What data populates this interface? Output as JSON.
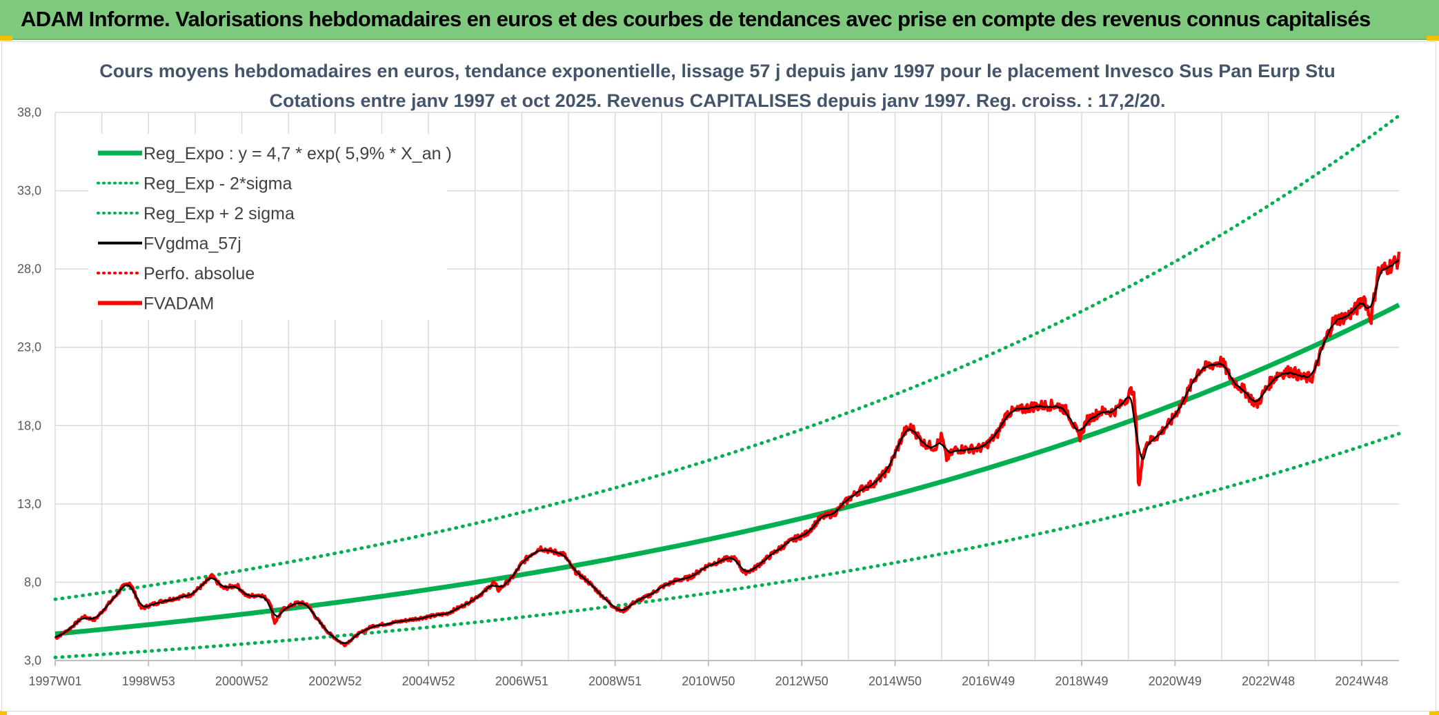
{
  "banner": {
    "title": "ADAM Informe. Valorisations hebdomadaires en euros et des courbes de tendances avec prise en compte des revenus connus capitalisés"
  },
  "colors": {
    "banner_bg": "#7fc97f",
    "trend": "#00b050",
    "price": "#ff0000",
    "smoothed": "#000000",
    "grid": "#d9d9d9"
  },
  "chart_data": {
    "type": "line",
    "title": "Cours moyens hebdomadaires en euros, tendance exponentielle, lissage 57 j depuis janv 1997 pour le placement Invesco Sus Pan Eurp Stu",
    "subtitle": "Cotations entre janv 1997 et oct 2025. Revenus CAPITALISES depuis janv 1997. Reg. croiss. : 17,2/20.",
    "xlabel": "",
    "ylabel": "",
    "x_range": [
      1997.0,
      2025.8
    ],
    "ylim": [
      3.0,
      38.0
    ],
    "y_ticks": [
      "3,0",
      "8,0",
      "13,0",
      "18,0",
      "23,0",
      "28,0",
      "33,0",
      "38,0"
    ],
    "x_ticks": [
      {
        "label": "1997W01",
        "x": 1997.0
      },
      {
        "label": "1998W53",
        "x": 1999.0
      },
      {
        "label": "2000W52",
        "x": 2001.0
      },
      {
        "label": "2002W52",
        "x": 2003.0
      },
      {
        "label": "2004W52",
        "x": 2005.0
      },
      {
        "label": "2006W51",
        "x": 2007.0
      },
      {
        "label": "2008W51",
        "x": 2009.0
      },
      {
        "label": "2010W50",
        "x": 2011.0
      },
      {
        "label": "2012W50",
        "x": 2013.0
      },
      {
        "label": "2014W50",
        "x": 2015.0
      },
      {
        "label": "2016W49",
        "x": 2017.0
      },
      {
        "label": "2018W49",
        "x": 2019.0
      },
      {
        "label": "2020W49",
        "x": 2021.0
      },
      {
        "label": "2022W48",
        "x": 2023.0
      },
      {
        "label": "2024W48",
        "x": 2025.0
      }
    ],
    "grid": true,
    "legend_position": "top-left",
    "trend": {
      "a": 4.7,
      "rate_percent": 5.9,
      "sigma_factor": 1.47
    },
    "series": [
      {
        "name": "Reg_Expo : y = 4,7 * exp( 5,9% *  X_an )",
        "kind": "trend",
        "color": "#00b050",
        "style": "solid"
      },
      {
        "name": "Reg_Exp - 2*sigma",
        "kind": "trend_low",
        "color": "#00b050",
        "style": "dotted"
      },
      {
        "name": "Reg_Exp + 2 sigma",
        "kind": "trend_high",
        "color": "#00b050",
        "style": "dotted"
      },
      {
        "name": "FVgdma_57j",
        "kind": "smoothed",
        "color": "#000000",
        "style": "solid"
      },
      {
        "name": "Perfo. absolue",
        "kind": "perf",
        "color": "#ff0000",
        "style": "dotted"
      },
      {
        "name": "FVADAM",
        "kind": "price",
        "color": "#ff0000",
        "style": "solid"
      }
    ],
    "price_points": [
      [
        1997.0,
        4.4
      ],
      [
        1997.3,
        5.0
      ],
      [
        1997.6,
        5.8
      ],
      [
        1997.85,
        5.6
      ],
      [
        1998.2,
        6.8
      ],
      [
        1998.45,
        7.7
      ],
      [
        1998.6,
        8.0
      ],
      [
        1998.75,
        7.0
      ],
      [
        1998.85,
        6.3
      ],
      [
        1999.0,
        6.5
      ],
      [
        1999.3,
        6.8
      ],
      [
        1999.6,
        7.0
      ],
      [
        1999.9,
        7.2
      ],
      [
        2000.2,
        7.9
      ],
      [
        2000.35,
        8.4
      ],
      [
        2000.6,
        7.6
      ],
      [
        2000.9,
        7.8
      ],
      [
        2001.1,
        7.1
      ],
      [
        2001.4,
        7.2
      ],
      [
        2001.6,
        6.8
      ],
      [
        2001.7,
        5.4
      ],
      [
        2001.9,
        6.3
      ],
      [
        2002.2,
        6.7
      ],
      [
        2002.4,
        6.6
      ],
      [
        2002.6,
        5.7
      ],
      [
        2002.85,
        4.8
      ],
      [
        2003.05,
        4.3
      ],
      [
        2003.2,
        4.0
      ],
      [
        2003.5,
        4.7
      ],
      [
        2003.8,
        5.2
      ],
      [
        2004.2,
        5.4
      ],
      [
        2004.6,
        5.6
      ],
      [
        2005.0,
        5.8
      ],
      [
        2005.4,
        6.0
      ],
      [
        2005.8,
        6.6
      ],
      [
        2006.2,
        7.4
      ],
      [
        2006.4,
        8.0
      ],
      [
        2006.5,
        7.5
      ],
      [
        2006.8,
        8.3
      ],
      [
        2007.0,
        9.2
      ],
      [
        2007.2,
        9.8
      ],
      [
        2007.4,
        10.2
      ],
      [
        2007.6,
        10.0
      ],
      [
        2007.9,
        9.8
      ],
      [
        2008.1,
        8.8
      ],
      [
        2008.4,
        8.1
      ],
      [
        2008.7,
        7.2
      ],
      [
        2008.95,
        6.5
      ],
      [
        2009.15,
        6.1
      ],
      [
        2009.4,
        6.7
      ],
      [
        2009.7,
        7.1
      ],
      [
        2010.0,
        7.7
      ],
      [
        2010.3,
        8.1
      ],
      [
        2010.6,
        8.3
      ],
      [
        2011.0,
        9.1
      ],
      [
        2011.4,
        9.5
      ],
      [
        2011.6,
        9.5
      ],
      [
        2011.75,
        8.6
      ],
      [
        2011.95,
        8.8
      ],
      [
        2012.2,
        9.4
      ],
      [
        2012.5,
        10.1
      ],
      [
        2012.8,
        10.7
      ],
      [
        2013.1,
        11.1
      ],
      [
        2013.4,
        12.1
      ],
      [
        2013.7,
        12.4
      ],
      [
        2014.0,
        13.3
      ],
      [
        2014.3,
        14.0
      ],
      [
        2014.6,
        14.4
      ],
      [
        2014.85,
        15.2
      ],
      [
        2015.0,
        16.2
      ],
      [
        2015.2,
        17.6
      ],
      [
        2015.35,
        17.9
      ],
      [
        2015.6,
        16.9
      ],
      [
        2015.85,
        16.6
      ],
      [
        2016.0,
        17.3
      ],
      [
        2016.1,
        15.9
      ],
      [
        2016.3,
        16.5
      ],
      [
        2016.6,
        16.5
      ],
      [
        2016.9,
        16.6
      ],
      [
        2017.2,
        17.5
      ],
      [
        2017.4,
        18.8
      ],
      [
        2017.7,
        19.0
      ],
      [
        2017.9,
        19.2
      ],
      [
        2018.2,
        19.3
      ],
      [
        2018.5,
        19.3
      ],
      [
        2018.7,
        18.9
      ],
      [
        2018.95,
        17.2
      ],
      [
        2019.1,
        18.3
      ],
      [
        2019.4,
        18.9
      ],
      [
        2019.7,
        18.9
      ],
      [
        2019.95,
        19.7
      ],
      [
        2020.1,
        20.4
      ],
      [
        2020.18,
        17.5
      ],
      [
        2020.22,
        14.0
      ],
      [
        2020.35,
        16.8
      ],
      [
        2020.6,
        17.3
      ],
      [
        2020.9,
        18.2
      ],
      [
        2021.2,
        19.7
      ],
      [
        2021.5,
        21.5
      ],
      [
        2021.8,
        21.9
      ],
      [
        2022.0,
        22.1
      ],
      [
        2022.2,
        21.0
      ],
      [
        2022.5,
        20.2
      ],
      [
        2022.75,
        19.3
      ],
      [
        2023.0,
        20.6
      ],
      [
        2023.2,
        21.3
      ],
      [
        2023.5,
        21.5
      ],
      [
        2023.75,
        21.0
      ],
      [
        2023.95,
        21.1
      ],
      [
        2024.2,
        23.3
      ],
      [
        2024.4,
        24.7
      ],
      [
        2024.7,
        25.0
      ],
      [
        2024.9,
        25.5
      ],
      [
        2025.05,
        26.2
      ],
      [
        2025.2,
        24.8
      ],
      [
        2025.35,
        27.8
      ],
      [
        2025.55,
        28.1
      ],
      [
        2025.8,
        28.6
      ]
    ]
  }
}
